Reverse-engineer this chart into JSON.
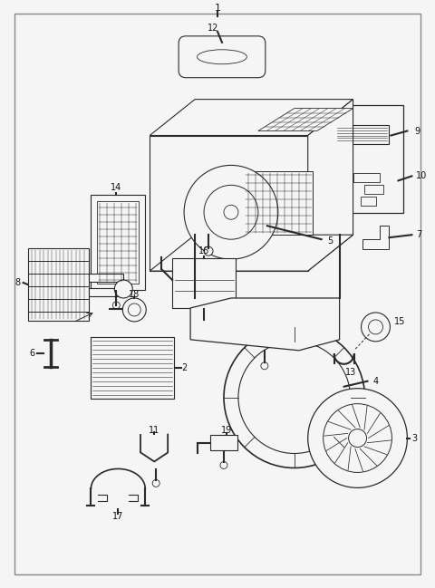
{
  "bg_color": "#f5f5f5",
  "border_color": "#888888",
  "line_color": "#2a2a2a",
  "text_color": "#111111",
  "fig_width": 4.8,
  "fig_height": 6.49,
  "dpi": 100
}
